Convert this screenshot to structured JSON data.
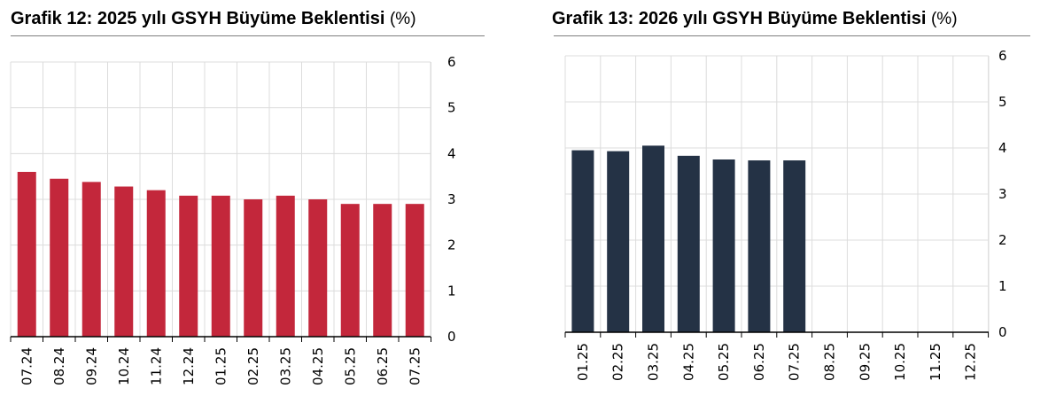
{
  "charts": [
    {
      "title": "Grafik 12: 2025 yılı GSYH Büyüme Beklentisi",
      "unit": "(%)"
    },
    {
      "title": "Grafik 13: 2026 yılı GSYH Büyüme Beklentisi",
      "unit": "(%)"
    }
  ],
  "chart_data": [
    {
      "type": "bar",
      "title": "Grafik 12: 2025 yılı GSYH Büyüme Beklentisi (%)",
      "categories": [
        "07.24",
        "08.24",
        "09.24",
        "10.24",
        "11.24",
        "12.24",
        "01.25",
        "02.25",
        "03.25",
        "04.25",
        "05.25",
        "06.25",
        "07.25"
      ],
      "values": [
        3.6,
        3.45,
        3.38,
        3.28,
        3.2,
        3.08,
        3.08,
        3.0,
        3.08,
        3.0,
        2.9,
        2.9,
        2.9
      ],
      "ylim": [
        0,
        6
      ],
      "yticks": [
        "0",
        "1",
        "2",
        "3",
        "4",
        "5",
        "6"
      ],
      "y_axis_side": "right",
      "grid": true,
      "bar_color": "#c3273b"
    },
    {
      "type": "bar",
      "title": "Grafik 13: 2026 yılı GSYH Büyüme Beklentisi (%)",
      "categories": [
        "01.25",
        "02.25",
        "03.25",
        "04.25",
        "05.25",
        "06.25",
        "07.25",
        "08.25",
        "09.25",
        "10.25",
        "11.25",
        "12.25"
      ],
      "values": [
        3.95,
        3.93,
        4.05,
        3.83,
        3.75,
        3.73,
        3.73,
        null,
        null,
        null,
        null,
        null
      ],
      "ylim": [
        0,
        6
      ],
      "yticks": [
        "0",
        "1",
        "2",
        "3",
        "4",
        "5",
        "6"
      ],
      "y_axis_side": "right",
      "grid": true,
      "bar_color": "#243245"
    }
  ]
}
